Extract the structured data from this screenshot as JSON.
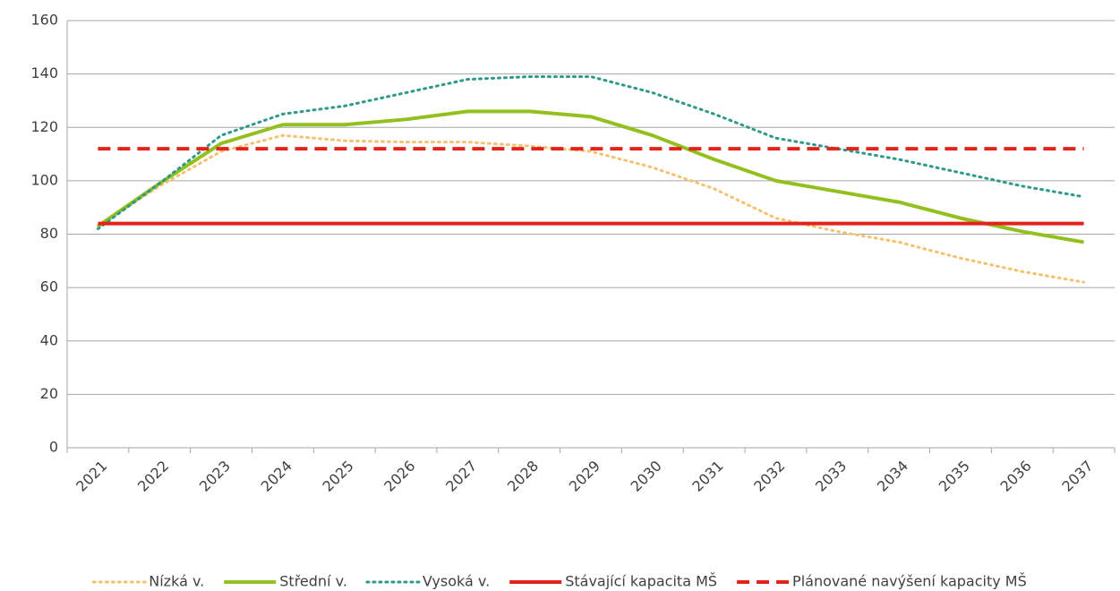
{
  "chart_data": {
    "type": "line",
    "categories": [
      "2021",
      "2022",
      "2023",
      "2024",
      "2025",
      "2026",
      "2027",
      "2028",
      "2029",
      "2030",
      "2031",
      "2032",
      "2033",
      "2034",
      "2035",
      "2036",
      "2037"
    ],
    "series": [
      {
        "name": "Nízká v.",
        "color": "#f5c271",
        "line_style": "dotted",
        "values": [
          83,
          98,
          111,
          117,
          115,
          114.5,
          114.5,
          113,
          111,
          105,
          97,
          86,
          81,
          77,
          71,
          66,
          62
        ]
      },
      {
        "name": "Střední v.",
        "color": "#93c01f",
        "line_style": "solid",
        "values": [
          83,
          99,
          114,
          121,
          121,
          123,
          126,
          126,
          124,
          117,
          108,
          100,
          96,
          92,
          86,
          81,
          77
        ]
      },
      {
        "name": "Vysoká v.",
        "color": "#2e9a8a",
        "line_style": "dotted",
        "values": [
          82,
          99,
          117,
          125,
          128,
          133,
          138,
          139,
          139,
          133,
          125,
          116,
          112,
          108,
          103,
          98,
          94
        ]
      },
      {
        "name": "Stávající kapacita MŠ",
        "color": "#e2231a",
        "line_style": "solid",
        "values": [
          84,
          84,
          84,
          84,
          84,
          84,
          84,
          84,
          84,
          84,
          84,
          84,
          84,
          84,
          84,
          84,
          84
        ]
      },
      {
        "name": "Plánované navýšení kapacity MŠ",
        "color": "#e2231a",
        "line_style": "dashed",
        "values": [
          112,
          112,
          112,
          112,
          112,
          112,
          112,
          112,
          112,
          112,
          112,
          112,
          112,
          112,
          112,
          112,
          112
        ]
      }
    ],
    "ylim": [
      0,
      160
    ],
    "yticks": [
      0,
      20,
      40,
      60,
      80,
      100,
      120,
      140,
      160
    ],
    "grid": true,
    "legend": "bottom"
  }
}
